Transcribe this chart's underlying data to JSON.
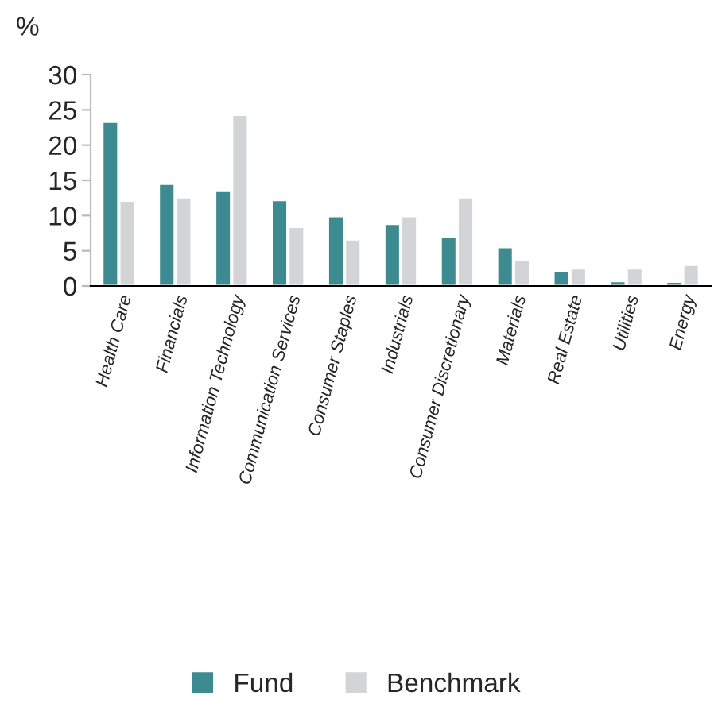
{
  "chart_data": {
    "type": "bar",
    "ylabel": "%",
    "categories": [
      "Health Care",
      "Financials",
      "Information Technology",
      "Communication Services",
      "Consumer Staples",
      "Industrials",
      "Consumer Discretionary",
      "Materials",
      "Real Estate",
      "Utilities",
      "Energy"
    ],
    "series": [
      {
        "name": "Fund",
        "color": "#3d8a91",
        "values": [
          23.3,
          14.5,
          13.5,
          12.2,
          9.9,
          8.8,
          7.0,
          5.5,
          2.1,
          0.7,
          0.6
        ]
      },
      {
        "name": "Benchmark",
        "color": "#d3d4d6",
        "values": [
          12.1,
          12.6,
          24.3,
          8.4,
          6.6,
          9.9,
          12.6,
          3.7,
          2.5,
          2.5,
          3.0
        ]
      }
    ],
    "ylim": [
      0,
      30
    ],
    "yticks": [
      0,
      5,
      10,
      15,
      20,
      25,
      30
    ],
    "grid": false,
    "legend": "bottom"
  }
}
